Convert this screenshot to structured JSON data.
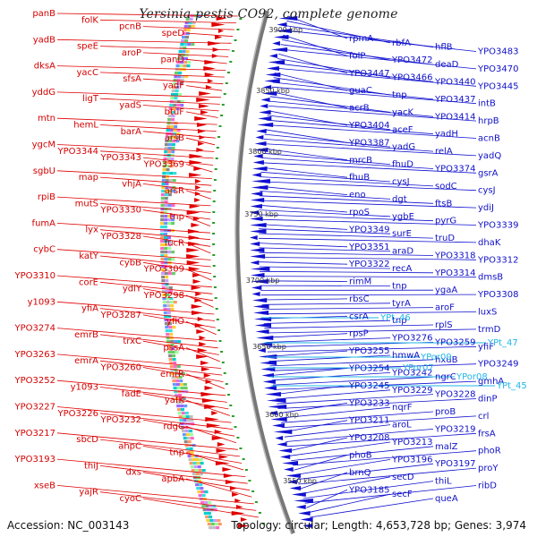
{
  "title": "Yersinia pestis CO92, complete genome",
  "accession_label": "Accession: NC_003143",
  "summary_label": "Topology: circular; Length: 4,653,728 bp; Genes: 3,974",
  "colors": {
    "forward": "#e00000",
    "reverse": "#1010d0",
    "rna": "#21b6e6",
    "backbone": "#777777",
    "tick": "#2a9d2a"
  },
  "kbp_markers": [
    "3900 kbp",
    "3850 kbp",
    "3800 kbp",
    "3750 kbp",
    "3700 kbp",
    "3650 kbp",
    "3600 kbp",
    "3550 kbp"
  ],
  "left_labels": [
    "panB",
    "folK",
    "pcnB",
    "speD",
    "yadB",
    "speE",
    "aroP",
    "panD",
    "dksA",
    "yacC",
    "sfsA",
    "yadF",
    "yddG",
    "ligT",
    "yadS",
    "btuF",
    "mtn",
    "hemL",
    "barA",
    "arsB",
    "ygcM",
    "YPO3344",
    "YPO3343",
    "YPO3369",
    "sgbU",
    "map",
    "vhjA",
    "arsR",
    "rpiB",
    "mutS",
    "YPO3330",
    "tnp",
    "fumA",
    "lyx",
    "YPO3328",
    "fucR",
    "cybC",
    "katY",
    "cybB",
    "YPO3309",
    "YPO3310",
    "corE",
    "ydiY",
    "YPO3298",
    "y1093",
    "yfiA",
    "YPO3287",
    "yfiO",
    "YPO3274",
    "emrB",
    "trxC",
    "pssA",
    "YPO3263",
    "emrA",
    "YPO3260",
    "emrR",
    "YPO3252",
    "y1093",
    "fadE",
    "yafK",
    "YPO3227",
    "YPO3226",
    "YPO3232",
    "rdgC",
    "YPO3217",
    "sbcD",
    "ahpC",
    "tnp",
    "YPO3193",
    "thiJ",
    "dxs",
    "apbA",
    "xseB",
    "yajR",
    "cyoC"
  ],
  "right_labels": [
    "rpmA",
    "rbfA",
    "hflB",
    "YPO3483",
    "folP",
    "YPO3472",
    "deaD",
    "YPO3470",
    "YPO3447",
    "YPO3466",
    "YPO3440",
    "YPO3445",
    "guaC",
    "tnp",
    "YPO3437",
    "intB",
    "acrB",
    "yacK",
    "YPO3414",
    "hrpB",
    "YPO3404",
    "aceF",
    "yadH",
    "acnB",
    "YPO3387",
    "yadG",
    "relA",
    "yadQ",
    "mrcB",
    "fhuD",
    "YPO3374",
    "gsrA",
    "fhuB",
    "cysJ",
    "sodC",
    "cysJ",
    "eno",
    "dgt",
    "ftsB",
    "ydiJ",
    "rpoS",
    "ygbE",
    "pyrG",
    "YPO3339",
    "YPO3349",
    "surE",
    "truD",
    "dhaK",
    "YPO3351",
    "araD",
    "YPO3318",
    "YPO3312",
    "YPO3322",
    "recA",
    "YPO3314",
    "dmsB",
    "rimM",
    "tnp",
    "ygaA",
    "YPO3308",
    "rbsC",
    "tyrA",
    "aroF",
    "luxS",
    "csrA",
    "tnp",
    "rplS",
    "trmD",
    "rpsP",
    "YPO3276",
    "YPO3259",
    "yfiF",
    "YPO3255",
    "hmwA",
    "hxuB",
    "YPO3249",
    "YPO3254",
    "YPO3242",
    "ngrC",
    "gmhA",
    "YPO3245",
    "YPO3229",
    "YPO3228",
    "dinP",
    "YPO3233",
    "nqrF",
    "proB",
    "crl",
    "YPO3211",
    "aroL",
    "YPO3219",
    "frsA",
    "YPO3208",
    "YPO3213",
    "malZ",
    "phoR",
    "phoB",
    "YPO3196",
    "YPO3197",
    "proY",
    "brnQ",
    "secD",
    "thiL",
    "ribD",
    "YPO3185",
    "secF",
    "queA"
  ],
  "rna_labels": [
    "YPt_46",
    "YPt_47",
    "YPor09",
    "YPor07",
    "YPor08",
    "YPt_45"
  ]
}
